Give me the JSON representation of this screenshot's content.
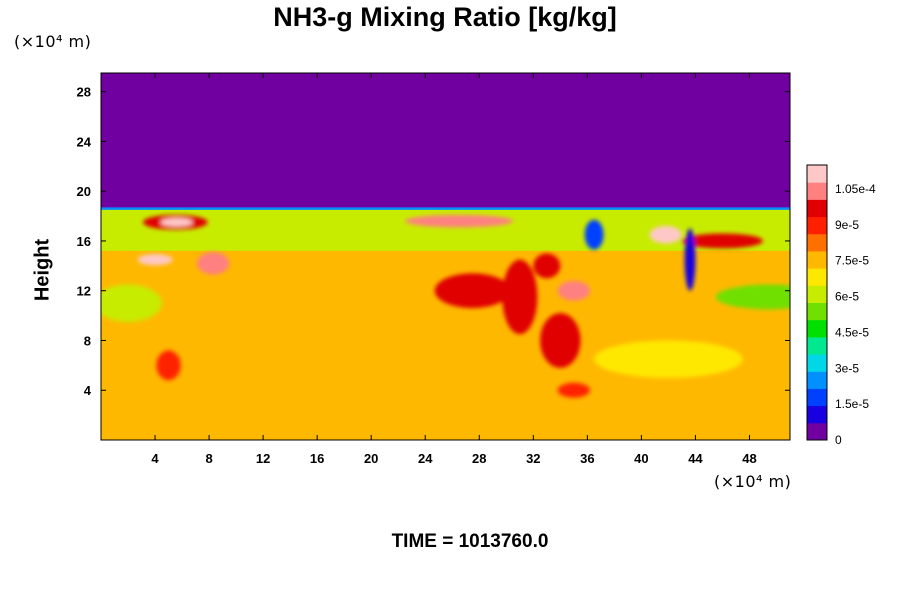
{
  "title": "NH3-g Mixing Ratio [kg/kg]",
  "y_unit": "(×10⁴ m)",
  "x_unit": "(×10⁴ m)",
  "ylabel": "Height",
  "time_label": "TIME = 1013760.0",
  "chart_data": {
    "type": "heatmap",
    "title": "NH3-g Mixing Ratio [kg/kg]",
    "xlabel": "",
    "ylabel": "Height",
    "x_unit": "(×10⁴ m)",
    "y_unit": "(×10⁴ m)",
    "xlim": [
      0,
      51
    ],
    "ylim": [
      0,
      29.5
    ],
    "x_ticks": [
      4,
      8,
      12,
      16,
      20,
      24,
      28,
      32,
      36,
      40,
      44,
      48
    ],
    "y_ticks": [
      4,
      8,
      12,
      16,
      20,
      24,
      28
    ],
    "colorbar": {
      "range": [
        0,
        0.000115
      ],
      "tick_values": [
        0,
        1.5e-05,
        3e-05,
        4.5e-05,
        6e-05,
        7.5e-05,
        9e-05,
        0.000105
      ],
      "tick_labels": [
        "0",
        "1.5e-5",
        "3e-5",
        "4.5e-5",
        "6e-5",
        "7.5e-5",
        "9e-5",
        "1.05e-4"
      ],
      "colors": [
        "#7000a0",
        "#1800e0",
        "#0040ff",
        "#0090ff",
        "#00d8e8",
        "#00e890",
        "#00e000",
        "#70e000",
        "#c8ec00",
        "#ffe800",
        "#ffb800",
        "#ff7000",
        "#ff2000",
        "#e00000",
        "#ff8080",
        "#ffc8c8"
      ]
    },
    "field": {
      "background_value": 7.3e-05,
      "top_region": {
        "value": 0,
        "y_from": 18.7,
        "y_to": 29.5
      },
      "green_band": {
        "value": 5.8e-05,
        "y_from": 15.2,
        "y_to": 18.5
      },
      "edge_band": {
        "value": 2.5e-05,
        "y_from": 18.5,
        "y_to": 18.8
      },
      "features": [
        {
          "x": 5.5,
          "y": 17.5,
          "rx": 2.4,
          "ry": 0.6,
          "value": 0.0001
        },
        {
          "x": 5.6,
          "y": 17.5,
          "rx": 1.2,
          "ry": 0.35,
          "value": 0.000112
        },
        {
          "x": 26.5,
          "y": 17.6,
          "rx": 4.0,
          "ry": 0.5,
          "value": 0.000102
        },
        {
          "x": 41.8,
          "y": 16.5,
          "rx": 1.2,
          "ry": 0.7,
          "value": 0.00011
        },
        {
          "x": 46.0,
          "y": 16.0,
          "rx": 3.0,
          "ry": 0.6,
          "value": 9.8e-05
        },
        {
          "x": 4.0,
          "y": 14.5,
          "rx": 1.3,
          "ry": 0.45,
          "value": 0.000108
        },
        {
          "x": 8.3,
          "y": 14.2,
          "rx": 1.2,
          "ry": 0.9,
          "value": 0.000105
        },
        {
          "x": 27.5,
          "y": 12.0,
          "rx": 2.8,
          "ry": 1.4,
          "value": 0.0001
        },
        {
          "x": 31.0,
          "y": 11.5,
          "rx": 1.3,
          "ry": 3.0,
          "value": 9.8e-05
        },
        {
          "x": 33.0,
          "y": 14.0,
          "rx": 1.0,
          "ry": 1.0,
          "value": 0.0001
        },
        {
          "x": 35.0,
          "y": 12.0,
          "rx": 1.2,
          "ry": 0.8,
          "value": 0.000102
        },
        {
          "x": 34.0,
          "y": 8.0,
          "rx": 1.5,
          "ry": 2.2,
          "value": 9.6e-05
        },
        {
          "x": 35.0,
          "y": 4.0,
          "rx": 1.2,
          "ry": 0.6,
          "value": 9e-05
        },
        {
          "x": 5.0,
          "y": 6.0,
          "rx": 0.9,
          "ry": 1.2,
          "value": 8.8e-05
        },
        {
          "x": 43.6,
          "y": 14.5,
          "rx": 0.4,
          "ry": 2.5,
          "value": 1e-05
        },
        {
          "x": 36.5,
          "y": 16.5,
          "rx": 0.7,
          "ry": 1.2,
          "value": 2e-05
        },
        {
          "x": 49.5,
          "y": 11.5,
          "rx": 4.0,
          "ry": 1.0,
          "value": 5.6e-05
        },
        {
          "x": 2.0,
          "y": 11.0,
          "rx": 2.5,
          "ry": 1.5,
          "value": 6.4e-05
        },
        {
          "x": 42.0,
          "y": 6.5,
          "rx": 5.5,
          "ry": 1.5,
          "value": 6.8e-05
        }
      ]
    }
  }
}
